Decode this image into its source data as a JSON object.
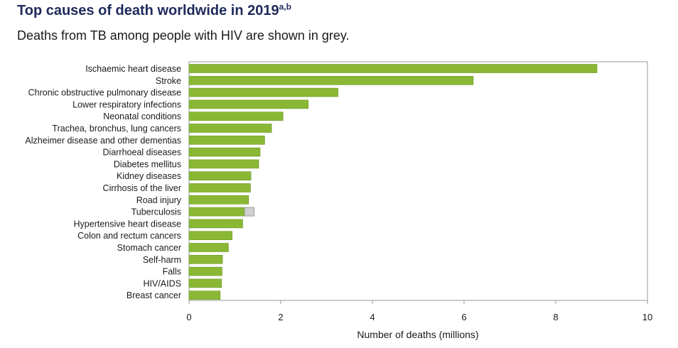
{
  "title": "Top causes of death worldwide in 2019",
  "title_superscript": "a,b",
  "subtitle": "Deaths from TB among people with HIV are shown in grey.",
  "colors": {
    "main": "#8ab835",
    "main_stroke": "#6a9420",
    "hiv_tb": "#d0d0d0",
    "hiv_tb_stroke": "#8a8a8a",
    "title": "#1f2a5c"
  },
  "chart_data": {
    "type": "bar",
    "orientation": "horizontal",
    "title": "Top causes of death worldwide in 2019",
    "subtitle": "Deaths from TB among people with HIV are shown in grey.",
    "xlabel": "Number of deaths (millions)",
    "ylabel": "",
    "xlim": [
      0,
      10
    ],
    "xticks": [
      "0",
      "2",
      "4",
      "6",
      "8",
      "10"
    ],
    "xtick_values": [
      0,
      2,
      4,
      6,
      8,
      10
    ],
    "categories": [
      "Ischaemic heart disease",
      "Stroke",
      "Chronic obstructive pulmonary disease",
      "Lower respiratory infections",
      "Neonatal conditions",
      "Trachea, bronchus, lung cancers",
      "Alzheimer disease and other dementias",
      "Diarrhoeal diseases",
      "Diabetes mellitus",
      "Kidney diseases",
      "Cirrhosis of the liver",
      "Road injury",
      "Tuberculosis",
      "Hypertensive heart disease",
      "Colon and rectum cancers",
      "Stomach cancer",
      "Self-harm",
      "Falls",
      "HIV/AIDS",
      "Breast cancer"
    ],
    "series": [
      {
        "name": "Deaths",
        "values": [
          8.9,
          6.2,
          3.25,
          2.6,
          2.05,
          1.8,
          1.65,
          1.55,
          1.52,
          1.35,
          1.34,
          1.3,
          1.21,
          1.17,
          0.94,
          0.86,
          0.73,
          0.72,
          0.71,
          0.68
        ]
      },
      {
        "name": "TB deaths among people with HIV",
        "values": [
          0,
          0,
          0,
          0,
          0,
          0,
          0,
          0,
          0,
          0,
          0,
          0,
          0.21,
          0,
          0,
          0,
          0,
          0,
          0,
          0
        ]
      }
    ],
    "grid": false,
    "legend": "none"
  }
}
